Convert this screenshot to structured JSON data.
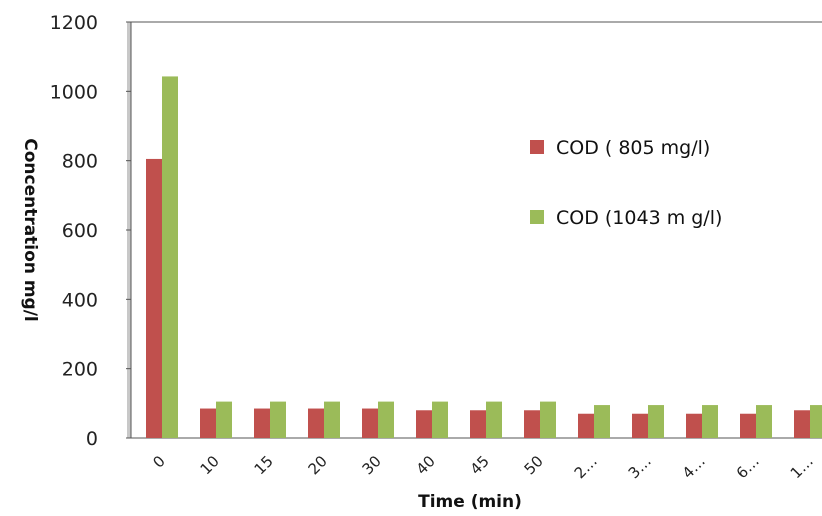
{
  "chart_data": {
    "type": "bar",
    "title": "",
    "xlabel": "Time (min)",
    "ylabel": "Concentration mg/l",
    "ylim": [
      0,
      1200
    ],
    "yticks": [
      "0",
      "200",
      "400",
      "600",
      "800",
      "1000",
      "1200"
    ],
    "categories": [
      "0",
      "10",
      "15",
      "20",
      "30",
      "40",
      "45",
      "50",
      "2…",
      "3…",
      "4…",
      "6…",
      "1…"
    ],
    "series": [
      {
        "name": "COD ( 805 mg/l)",
        "color": "#c0504d",
        "values": [
          805,
          85,
          85,
          85,
          85,
          80,
          80,
          80,
          70,
          70,
          70,
          70,
          80
        ]
      },
      {
        "name": "COD (1043 m g/l)",
        "color": "#9bbb59",
        "values": [
          1043,
          105,
          105,
          105,
          105,
          105,
          105,
          105,
          95,
          95,
          95,
          95,
          95
        ]
      }
    ],
    "grid": false,
    "legend_position": "right"
  }
}
